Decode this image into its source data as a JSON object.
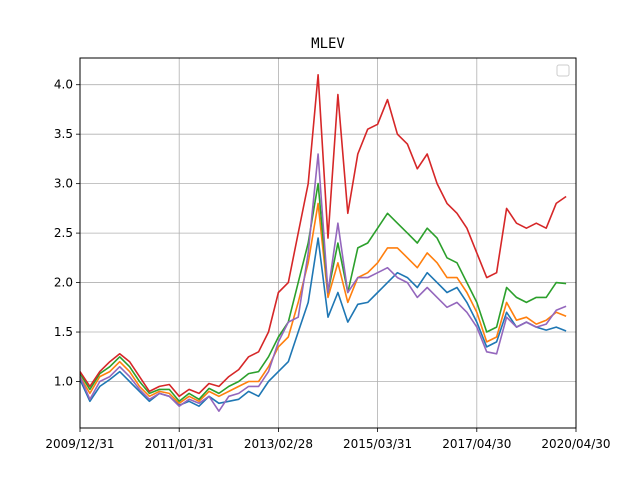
{
  "chart_data": {
    "type": "line",
    "title": "MLEV",
    "xlabel": "",
    "ylabel": "",
    "x_tick_labels": [
      "2009/12/31",
      "2011/01/31",
      "2013/02/28",
      "2015/03/31",
      "2017/04/30",
      "2020/04/30"
    ],
    "x_tick_positions": [
      0,
      1,
      2,
      3,
      4,
      5
    ],
    "xlim": [
      0,
      5
    ],
    "y_ticks": [
      1.0,
      1.5,
      2.0,
      2.5,
      3.0,
      3.5,
      4.0
    ],
    "y_tick_labels": [
      "1.0",
      "1.5",
      "2.0",
      "2.5",
      "3.0",
      "3.5",
      "4.0"
    ],
    "ylim": [
      0.53,
      4.27
    ],
    "grid": true,
    "legend_placement": "upper-right",
    "legend_entries": [],
    "colors": [
      "#1f77b4",
      "#ff7f0e",
      "#2ca02c",
      "#d62728",
      "#9467bd"
    ],
    "x": [
      0.0,
      0.1,
      0.2,
      0.3,
      0.4,
      0.5,
      0.6,
      0.7,
      0.8,
      0.9,
      1.0,
      1.1,
      1.2,
      1.3,
      1.4,
      1.5,
      1.6,
      1.7,
      1.8,
      1.9,
      2.0,
      2.1,
      2.2,
      2.3,
      2.4,
      2.5,
      2.6,
      2.7,
      2.8,
      2.9,
      3.0,
      3.1,
      3.2,
      3.3,
      3.4,
      3.5,
      3.6,
      3.7,
      3.8,
      3.9,
      4.0,
      4.1,
      4.2,
      4.3,
      4.4,
      4.5,
      4.6,
      4.7,
      4.8,
      4.9
    ],
    "series": [
      {
        "values": [
          1.02,
          0.8,
          0.95,
          1.02,
          1.1,
          1.0,
          0.9,
          0.8,
          0.88,
          0.85,
          0.76,
          0.8,
          0.75,
          0.85,
          0.78,
          0.8,
          0.82,
          0.9,
          0.85,
          1.0,
          1.1,
          1.2,
          1.5,
          1.8,
          2.45,
          1.65,
          1.9,
          1.6,
          1.78,
          1.8,
          1.9,
          2.0,
          2.1,
          2.05,
          1.95,
          2.1,
          2.0,
          1.9,
          1.95,
          1.8,
          1.6,
          1.35,
          1.4,
          1.7,
          1.55,
          1.6,
          1.55,
          1.52,
          1.55,
          1.51
        ]
      },
      {
        "values": [
          1.05,
          0.88,
          1.05,
          1.1,
          1.2,
          1.1,
          0.95,
          0.85,
          0.9,
          0.88,
          0.78,
          0.85,
          0.8,
          0.9,
          0.85,
          0.9,
          0.95,
          1.0,
          1.0,
          1.15,
          1.35,
          1.45,
          1.8,
          2.2,
          2.8,
          1.85,
          2.2,
          1.8,
          2.05,
          2.1,
          2.2,
          2.35,
          2.35,
          2.25,
          2.15,
          2.3,
          2.2,
          2.05,
          2.05,
          1.9,
          1.7,
          1.4,
          1.45,
          1.8,
          1.62,
          1.65,
          1.58,
          1.62,
          1.7,
          1.66
        ]
      },
      {
        "values": [
          1.08,
          0.92,
          1.08,
          1.15,
          1.25,
          1.15,
          1.0,
          0.88,
          0.92,
          0.92,
          0.8,
          0.88,
          0.82,
          0.93,
          0.88,
          0.95,
          1.0,
          1.08,
          1.1,
          1.25,
          1.45,
          1.6,
          2.0,
          2.4,
          3.0,
          1.9,
          2.4,
          1.9,
          2.35,
          2.4,
          2.55,
          2.7,
          2.6,
          2.5,
          2.4,
          2.55,
          2.45,
          2.25,
          2.2,
          2.0,
          1.8,
          1.5,
          1.55,
          1.95,
          1.85,
          1.8,
          1.85,
          1.85,
          2.0,
          1.99
        ]
      },
      {
        "values": [
          1.1,
          0.95,
          1.1,
          1.2,
          1.28,
          1.2,
          1.05,
          0.9,
          0.95,
          0.97,
          0.85,
          0.92,
          0.88,
          0.98,
          0.95,
          1.05,
          1.12,
          1.25,
          1.3,
          1.5,
          1.9,
          2.0,
          2.5,
          3.0,
          4.1,
          2.45,
          3.9,
          2.7,
          3.3,
          3.55,
          3.6,
          3.85,
          3.5,
          3.4,
          3.15,
          3.3,
          3.0,
          2.8,
          2.7,
          2.55,
          2.3,
          2.05,
          2.1,
          2.75,
          2.6,
          2.55,
          2.6,
          2.55,
          2.8,
          2.87
        ]
      },
      {
        "values": [
          1.05,
          0.82,
          1.0,
          1.05,
          1.15,
          1.05,
          0.92,
          0.82,
          0.88,
          0.85,
          0.75,
          0.82,
          0.78,
          0.85,
          0.7,
          0.85,
          0.88,
          0.95,
          0.95,
          1.1,
          1.4,
          1.6,
          1.65,
          2.3,
          3.3,
          1.9,
          2.6,
          1.9,
          2.05,
          2.05,
          2.1,
          2.15,
          2.05,
          2.0,
          1.85,
          1.95,
          1.85,
          1.75,
          1.8,
          1.7,
          1.55,
          1.3,
          1.28,
          1.65,
          1.55,
          1.6,
          1.55,
          1.58,
          1.72,
          1.76
        ]
      }
    ]
  }
}
